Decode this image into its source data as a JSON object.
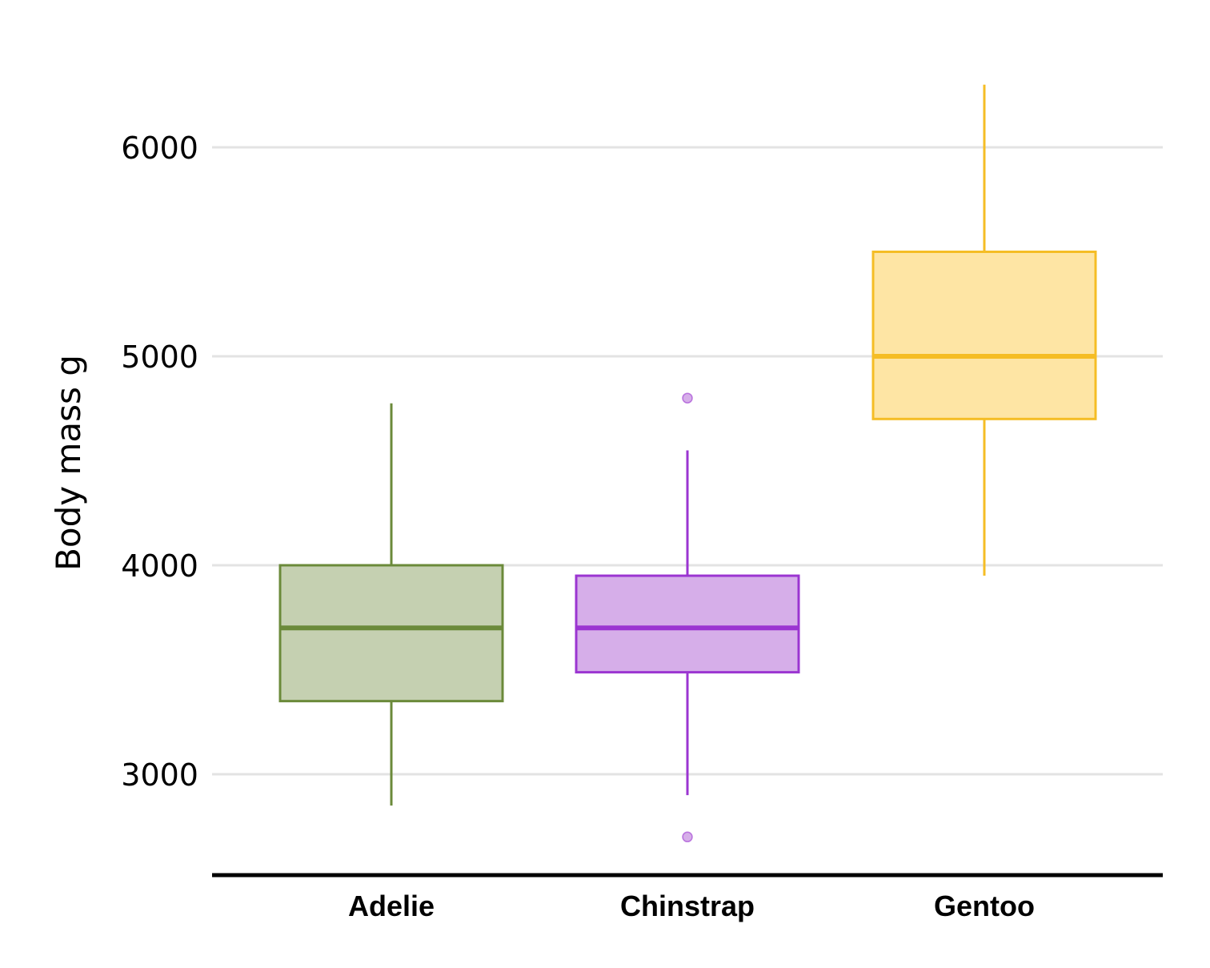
{
  "chart_data": {
    "type": "box",
    "title": "",
    "xlabel": "",
    "ylabel": "Body mass g",
    "ylim": [
      2600,
      6300
    ],
    "yticks": [
      3000,
      4000,
      5000,
      6000
    ],
    "ytick_labels": [
      "3000",
      "4000",
      "5000",
      "6000"
    ],
    "grid": "horizontal",
    "legend": "none",
    "categories": [
      "Adelie",
      "Chinstrap",
      "Gentoo"
    ],
    "series": [
      {
        "category": "Adelie",
        "color": "#6b8a3a",
        "fill": "#c5d0b1",
        "whisker_low": 2850,
        "q1": 3350,
        "median": 3700,
        "q3": 4000,
        "whisker_high": 4775,
        "outliers": []
      },
      {
        "category": "Chinstrap",
        "color": "#9b35d1",
        "fill": "#d6aee9",
        "whisker_low": 2900,
        "q1": 3488,
        "median": 3700,
        "q3": 3950,
        "whisker_high": 4550,
        "outliers": [
          4800,
          2700
        ]
      },
      {
        "category": "Gentoo",
        "color": "#f5bd25",
        "fill": "#fee5a4",
        "whisker_low": 3950,
        "q1": 4700,
        "median": 5000,
        "q3": 5500,
        "whisker_high": 6300,
        "outliers": []
      }
    ]
  }
}
